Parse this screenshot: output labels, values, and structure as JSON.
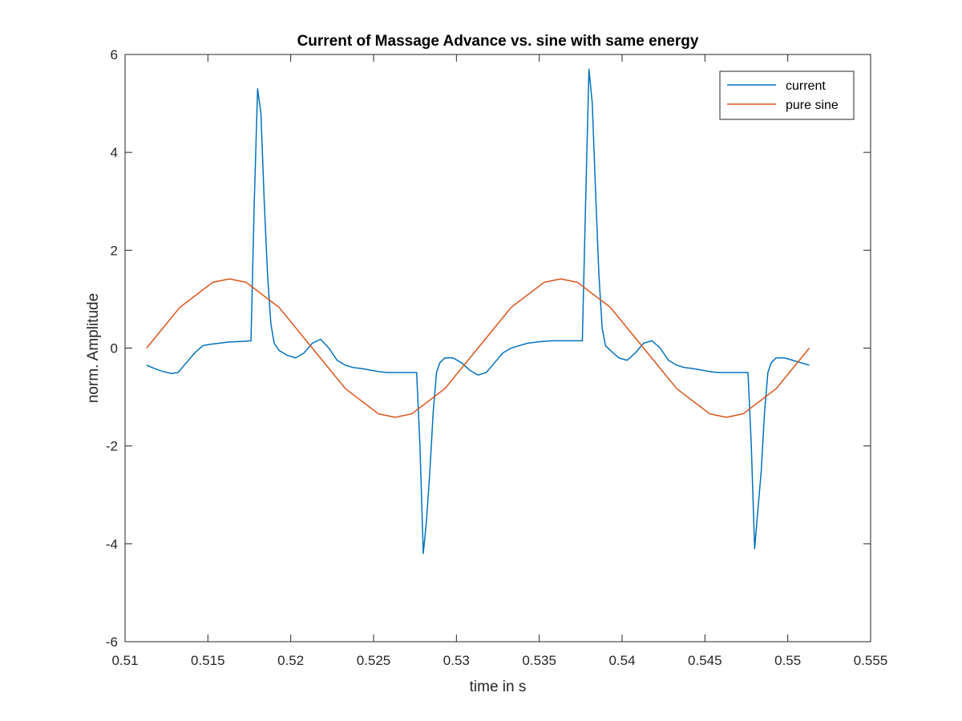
{
  "chart_data": {
    "type": "line",
    "title": "Current of Massage Advance vs. sine with same energy",
    "xlabel": "time in s",
    "ylabel": "norm. Amplitude",
    "xlim": [
      0.51,
      0.555
    ],
    "ylim": [
      -6,
      6
    ],
    "xticks": [
      "0.51",
      "0.515",
      "0.52",
      "0.525",
      "0.53",
      "0.535",
      "0.54",
      "0.545",
      "0.55",
      "0.555"
    ],
    "yticks": [
      "-6",
      "-4",
      "-2",
      "0",
      "2",
      "4",
      "6"
    ],
    "grid": false,
    "legend_position": "top-right",
    "series": [
      {
        "name": "current",
        "color": "#0072BD",
        "x": [
          0.5113,
          0.5118,
          0.5123,
          0.5128,
          0.5132,
          0.5137,
          0.5142,
          0.5147,
          0.5152,
          0.5157,
          0.5162,
          0.5167,
          0.5172,
          0.5176,
          0.5178,
          0.518,
          0.5182,
          0.5184,
          0.5186,
          0.5188,
          0.519,
          0.5193,
          0.5198,
          0.5203,
          0.5208,
          0.5213,
          0.5218,
          0.5223,
          0.5228,
          0.5233,
          0.5238,
          0.5243,
          0.5248,
          0.5253,
          0.5258,
          0.5263,
          0.5268,
          0.5273,
          0.5276,
          0.5278,
          0.528,
          0.5282,
          0.5284,
          0.5286,
          0.5288,
          0.529,
          0.5293,
          0.5298,
          0.5303,
          0.5308,
          0.5313,
          0.5318,
          0.5323,
          0.5328,
          0.5333,
          0.5338,
          0.5343,
          0.5348,
          0.5353,
          0.5358,
          0.5363,
          0.5368,
          0.5373,
          0.5376,
          0.5378,
          0.538,
          0.5382,
          0.5384,
          0.5386,
          0.5388,
          0.539,
          0.5393,
          0.5398,
          0.5403,
          0.5408,
          0.5413,
          0.5418,
          0.5423,
          0.5428,
          0.5433,
          0.5438,
          0.5443,
          0.5448,
          0.5453,
          0.5458,
          0.5463,
          0.5468,
          0.5473,
          0.5476,
          0.5478,
          0.548,
          0.5482,
          0.5484,
          0.5486,
          0.5488,
          0.549,
          0.5493,
          0.5498,
          0.5503,
          0.5508,
          0.5513
        ],
        "y": [
          -0.35,
          -0.42,
          -0.48,
          -0.52,
          -0.5,
          -0.3,
          -0.1,
          0.05,
          0.08,
          0.1,
          0.12,
          0.13,
          0.14,
          0.15,
          3.0,
          5.3,
          4.8,
          3.0,
          1.5,
          0.5,
          0.1,
          -0.05,
          -0.15,
          -0.2,
          -0.1,
          0.1,
          0.18,
          0.0,
          -0.25,
          -0.35,
          -0.4,
          -0.42,
          -0.45,
          -0.48,
          -0.5,
          -0.5,
          -0.5,
          -0.5,
          -0.5,
          -2.0,
          -4.2,
          -3.5,
          -2.5,
          -1.3,
          -0.5,
          -0.3,
          -0.2,
          -0.2,
          -0.3,
          -0.45,
          -0.55,
          -0.5,
          -0.3,
          -0.1,
          0.0,
          0.05,
          0.1,
          0.12,
          0.14,
          0.15,
          0.15,
          0.15,
          0.15,
          0.15,
          3.0,
          5.7,
          5.0,
          3.2,
          1.5,
          0.4,
          0.05,
          -0.05,
          -0.2,
          -0.25,
          -0.1,
          0.1,
          0.15,
          0.0,
          -0.25,
          -0.35,
          -0.4,
          -0.42,
          -0.45,
          -0.48,
          -0.5,
          -0.5,
          -0.5,
          -0.5,
          -0.5,
          -2.0,
          -4.1,
          -3.3,
          -2.5,
          -1.3,
          -0.5,
          -0.3,
          -0.2,
          -0.2,
          -0.25,
          -0.3,
          -0.35
        ]
      },
      {
        "name": "pure sine",
        "color": "#D95319",
        "x": [
          0.5113,
          0.5133,
          0.5153,
          0.5163,
          0.5173,
          0.5193,
          0.5213,
          0.5233,
          0.5253,
          0.5263,
          0.5273,
          0.5293,
          0.5313,
          0.5333,
          0.5353,
          0.5363,
          0.5373,
          0.5393,
          0.5413,
          0.5433,
          0.5453,
          0.5463,
          0.5473,
          0.5493,
          0.5513
        ],
        "y": [
          0.0,
          0.83,
          1.345,
          1.414,
          1.345,
          0.83,
          0.0,
          -0.83,
          -1.345,
          -1.414,
          -1.345,
          -0.83,
          0.0,
          0.83,
          1.345,
          1.414,
          1.345,
          0.83,
          0.0,
          -0.83,
          -1.345,
          -1.414,
          -1.345,
          -0.83,
          0.0
        ]
      }
    ]
  }
}
